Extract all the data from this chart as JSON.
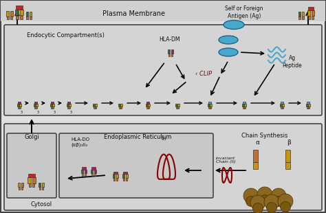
{
  "bg_color": "#e0e0e0",
  "plasma_membrane_text": "Plasma Membrane",
  "endocytic_text": "Endocytic Compartment(s)",
  "er_text": "Endoplasmic Reticulum",
  "chain_text": "Chain Synthesis",
  "golgi_text": "Golgi",
  "cytosol_text": "Cytosol",
  "hla_dm_text": "HLA-DM",
  "hla_do_text": "HLA-DO\n(αβ)₃Ii₃",
  "clip_text": "‹ CLIP",
  "ag_peptide_text": "Ag\nPeptide",
  "self_foreign_text": "Self or Foreign\nAntigen (Ag)",
  "ii3_text": "Ii₃",
  "invariant_text": "Invariant\nChain (Ii)",
  "alpha_text": "α",
  "beta_text": "β",
  "colors": {
    "green": "#3a6b30",
    "yellow": "#c8960a",
    "orange": "#c07030",
    "magenta": "#a02060",
    "red_dark": "#880000",
    "cyan_fill": "#48a8cc",
    "cyan_edge": "#1a6688",
    "brown": "#806020",
    "arrow": "#111111",
    "text": "#111111",
    "box_edge": "#444444",
    "light_gray": "#d8d8d8",
    "mid_gray": "#c8c8c8",
    "white": "#f8f8f8"
  }
}
